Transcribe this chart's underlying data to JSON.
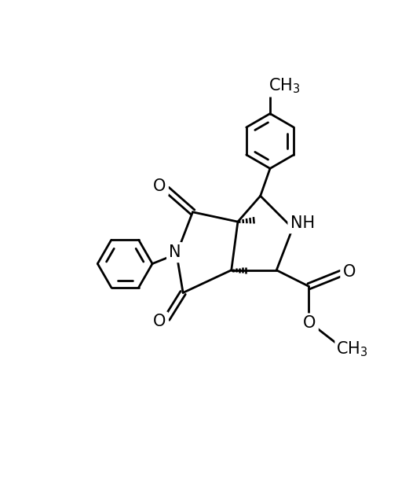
{
  "background": "#ffffff",
  "line_color": "#000000",
  "line_width": 2.0,
  "figsize": [
    5.35,
    6.4
  ],
  "dpi": 100,
  "xlim": [
    0,
    10
  ],
  "ylim": [
    0,
    12
  ],
  "font_size": 15
}
